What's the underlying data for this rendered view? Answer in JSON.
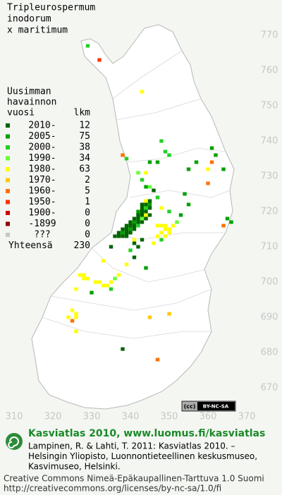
{
  "title": [
    "Tripleurospermum",
    "inodorum",
    "x maritimum"
  ],
  "legend": {
    "heading": [
      "Uusimman",
      "havainnon"
    ],
    "year_header": "vuosi",
    "count_header": "lkm",
    "rows": [
      {
        "label": "2010-",
        "count": 12,
        "color": "#006400"
      },
      {
        "label": "2005-",
        "count": 75,
        "color": "#00a000"
      },
      {
        "label": "2000-",
        "count": 38,
        "color": "#22d022"
      },
      {
        "label": "1990-",
        "count": 34,
        "color": "#66ff33"
      },
      {
        "label": "1980-",
        "count": 63,
        "color": "#ffff00"
      },
      {
        "label": "1970-",
        "count": 2,
        "color": "#ffc800"
      },
      {
        "label": "1960-",
        "count": 5,
        "color": "#ff7000"
      },
      {
        "label": "1950-",
        "count": 1,
        "color": "#ff3000"
      },
      {
        "label": "1900-",
        "count": 0,
        "color": "#d00000"
      },
      {
        "label": "-1899",
        "count": 0,
        "color": "#900000"
      },
      {
        "label": "???",
        "count": 0,
        "color": "#c8c8c8"
      }
    ],
    "total_label": "Yhteensä",
    "total": 230
  },
  "x_axis": {
    "ticks": [
      310,
      320,
      330,
      340,
      350,
      360,
      370
    ]
  },
  "y_axis": {
    "ticks": [
      670,
      680,
      690,
      700,
      710,
      720,
      730,
      740,
      750,
      760,
      770
    ]
  },
  "squares": [
    [
      336,
      713,
      0
    ],
    [
      337,
      713,
      0
    ],
    [
      338,
      713,
      0
    ],
    [
      339,
      713,
      0
    ],
    [
      337,
      714,
      0
    ],
    [
      338,
      714,
      1
    ],
    [
      339,
      714,
      0
    ],
    [
      340,
      714,
      0
    ],
    [
      338,
      715,
      0
    ],
    [
      339,
      715,
      0
    ],
    [
      340,
      715,
      1
    ],
    [
      341,
      715,
      0
    ],
    [
      339,
      716,
      0
    ],
    [
      340,
      716,
      0
    ],
    [
      341,
      716,
      0
    ],
    [
      342,
      716,
      2
    ],
    [
      340,
      717,
      0
    ],
    [
      341,
      717,
      1
    ],
    [
      342,
      717,
      0
    ],
    [
      343,
      717,
      0
    ],
    [
      341,
      718,
      0
    ],
    [
      342,
      718,
      0
    ],
    [
      343,
      718,
      3
    ],
    [
      344,
      718,
      0
    ],
    [
      342,
      719,
      0
    ],
    [
      343,
      719,
      0
    ],
    [
      344,
      719,
      4
    ],
    [
      345,
      719,
      0
    ],
    [
      342,
      720,
      1
    ],
    [
      343,
      720,
      0
    ],
    [
      344,
      720,
      0
    ],
    [
      343,
      721,
      0
    ],
    [
      344,
      721,
      2
    ],
    [
      345,
      721,
      0
    ],
    [
      343,
      722,
      0
    ],
    [
      344,
      722,
      0
    ],
    [
      345,
      722,
      1
    ],
    [
      344,
      723,
      4
    ],
    [
      345,
      723,
      0
    ],
    [
      343,
      712,
      0
    ],
    [
      341,
      712,
      4
    ],
    [
      341,
      711,
      0
    ],
    [
      342,
      710,
      0
    ],
    [
      340,
      709,
      2
    ],
    [
      335,
      710,
      0
    ],
    [
      347,
      716,
      4
    ],
    [
      348,
      716,
      4
    ],
    [
      349,
      715,
      4
    ],
    [
      350,
      715,
      4
    ],
    [
      349,
      716,
      4
    ],
    [
      350,
      714,
      4
    ],
    [
      348,
      714,
      4
    ],
    [
      351,
      716,
      4
    ],
    [
      347,
      713,
      4
    ],
    [
      349,
      713,
      4
    ],
    [
      346,
      711,
      4
    ],
    [
      348,
      712,
      2
    ],
    [
      352,
      717,
      3
    ],
    [
      353,
      719,
      1
    ],
    [
      350,
      720,
      2
    ],
    [
      348,
      721,
      4
    ],
    [
      347,
      724,
      2
    ],
    [
      346,
      726,
      0
    ],
    [
      345,
      727,
      3
    ],
    [
      344,
      727,
      1
    ],
    [
      329,
      767,
      2
    ],
    [
      332,
      763,
      7
    ],
    [
      343,
      754,
      4
    ],
    [
      338,
      736,
      6
    ],
    [
      339,
      735,
      2
    ],
    [
      348,
      740,
      2
    ],
    [
      349,
      737,
      2
    ],
    [
      350,
      736,
      2
    ],
    [
      347,
      734,
      1
    ],
    [
      345,
      734,
      1
    ],
    [
      344,
      731,
      4
    ],
    [
      343,
      729,
      2
    ],
    [
      342,
      731,
      3
    ],
    [
      361,
      738,
      1
    ],
    [
      361,
      734,
      6
    ],
    [
      360,
      732,
      4
    ],
    [
      362,
      736,
      1
    ],
    [
      355,
      732,
      1
    ],
    [
      357,
      734,
      1
    ],
    [
      364,
      732,
      1
    ],
    [
      360,
      728,
      6
    ],
    [
      354,
      725,
      1
    ],
    [
      355,
      722,
      1
    ],
    [
      365,
      718,
      1
    ],
    [
      366,
      717,
      1
    ],
    [
      364,
      716,
      6
    ],
    [
      327,
      702,
      4
    ],
    [
      328,
      702,
      4
    ],
    [
      328,
      701,
      4
    ],
    [
      329,
      701,
      4
    ],
    [
      331,
      700,
      4
    ],
    [
      332,
      700,
      4
    ],
    [
      333,
      699,
      4
    ],
    [
      334,
      699,
      4
    ],
    [
      335,
      698,
      2
    ],
    [
      335,
      700,
      4
    ],
    [
      336,
      701,
      3
    ],
    [
      337,
      702,
      4
    ],
    [
      326,
      698,
      4
    ],
    [
      325,
      692,
      4
    ],
    [
      326,
      691,
      4
    ],
    [
      324,
      690,
      4
    ],
    [
      326,
      690,
      4
    ],
    [
      325,
      689,
      6
    ],
    [
      326,
      686,
      4
    ],
    [
      333,
      706,
      4
    ],
    [
      339,
      705,
      4
    ],
    [
      341,
      707,
      0
    ],
    [
      344,
      704,
      1
    ],
    [
      330,
      697,
      1
    ],
    [
      338,
      681,
      0
    ],
    [
      347,
      678,
      6
    ],
    [
      350,
      691,
      5
    ],
    [
      345,
      690,
      5
    ]
  ],
  "badge": [
    "(cc)",
    "BY-NC-SA"
  ],
  "footer": {
    "site": "Kasviatlas 2010, www.luomus.fi/kasviatlas",
    "citation": [
      "Lampinen, R. & Lahti, T. 2011: Kasviatlas 2010. –",
      "Helsingin Yliopisto, Luonnontieteellinen keskusmuseo,",
      "Kasvimuseo, Helsinki."
    ],
    "license": [
      "Creative Commons Nimeä-Epäkaupallinen-Tarttuva 1.0 Suomi",
      "http://creativecommons.org/licenses/by-nc-sa/1.0/fi"
    ]
  }
}
